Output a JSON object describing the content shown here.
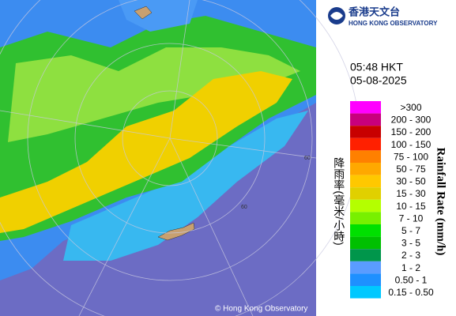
{
  "header": {
    "name_zh": "香港天文台",
    "name_en": "HONG KONG OBSERVATORY"
  },
  "time": "05:48 HKT",
  "date": "05-08-2025",
  "map": {
    "ring_labels": [
      "60",
      "60"
    ],
    "copyright": "© Hong Kong Observatory"
  },
  "legend": {
    "title_zh": "降雨率(毫米/小時)",
    "title_en": "Rainfall Rate (mm/h)",
    "items": [
      {
        "label": ">300",
        "color": "#ff00ff"
      },
      {
        "label": "200 - 300",
        "color": "#c8007d"
      },
      {
        "label": "150 - 200",
        "color": "#c80000"
      },
      {
        "label": "100 - 150",
        "color": "#ff2000"
      },
      {
        "label": "75 - 100",
        "color": "#ff8000"
      },
      {
        "label": "50 - 75",
        "color": "#ffa800"
      },
      {
        "label": "30 - 50",
        "color": "#ffc800"
      },
      {
        "label": "15 - 30",
        "color": "#e0d000"
      },
      {
        "label": "10 - 15",
        "color": "#b4ff00"
      },
      {
        "label": "7 - 10",
        "color": "#78f000"
      },
      {
        "label": "5 - 7",
        "color": "#00e000"
      },
      {
        "label": "3 - 5",
        "color": "#00c000"
      },
      {
        "label": "2 - 3",
        "color": "#00964b"
      },
      {
        "label": "1 - 2",
        "color": "#5a9cff"
      },
      {
        "label": "0.50 - 1",
        "color": "#1e90ff"
      },
      {
        "label": "0.15 - 0.50",
        "color": "#00c8ff"
      }
    ]
  }
}
